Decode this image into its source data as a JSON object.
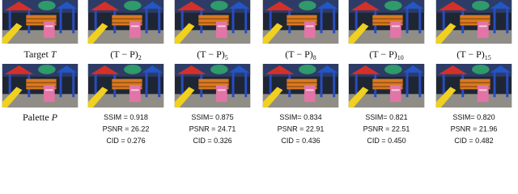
{
  "top_labels": [
    {
      "text": "Target",
      "var": "T"
    },
    {
      "text": "(T − P)",
      "sub": "2"
    },
    {
      "text": "(T − P)",
      "sub": "5"
    },
    {
      "text": "(T − P)",
      "sub": "8"
    },
    {
      "text": "(T − P)",
      "sub": "10"
    },
    {
      "text": "(T − P)",
      "sub": "15"
    }
  ],
  "bottom_label": {
    "text": "Palette",
    "var": "P"
  },
  "metrics": [
    [
      "SSIM = 0.918",
      "PSNR = 26.22",
      "CID = 0.276"
    ],
    [
      "SSIM= 0.875",
      "PSNR = 24.71",
      "CID = 0.326"
    ],
    [
      "SSIM= 0.834",
      "PSNR = 22.91",
      "CID = 0.436"
    ],
    [
      "SSIM= 0.821",
      "PSNR = 22.51",
      "CID = 0.450"
    ],
    [
      "SSIM= 0.820",
      "PSNR = 21.96",
      "CID = 0.482"
    ]
  ]
}
